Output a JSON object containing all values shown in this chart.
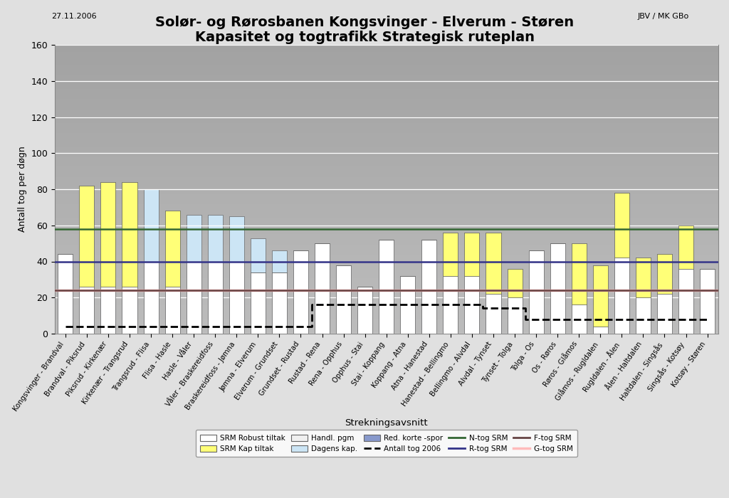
{
  "title_line1": "Solør- og Rørosbanen Kongsvinger - Elverum - Støren",
  "title_line2": "Kapasitet og togtrafikk Strategisk ruteplan",
  "date_text": "27.11.2006",
  "author_text": "JBV / MK GBo",
  "ylabel": "Antall tog per døgn",
  "xlabel": "Strekningsavsnitt",
  "ylim": [
    0,
    160
  ],
  "yticks": [
    0,
    20,
    40,
    60,
    80,
    100,
    120,
    140,
    160
  ],
  "categories": [
    "Kongsvinger - Brandval",
    "Brandval - Piksrud",
    "Piksrud - Kirkenær",
    "Kirkenær - Trangsrud",
    "Trangsrud - Flisa",
    "Flisa - Hasle",
    "Hasle - Våler",
    "Våler - Braskereidfoss",
    "Braskereidfoss - Jømna",
    "Jømna - Elverum",
    "Elverum - Grundset",
    "Grundset - Rustad",
    "Rustad - Rena",
    "Rena - Opphus",
    "Opphus - Stai",
    "Stai - Koppang",
    "Koppang - Atna",
    "Atna - Hanestad",
    "Hanestad - Bellingmo",
    "Bellingmo - Alvdal",
    "Alvdal - Tynset",
    "Tynset - Tolga",
    "Tolga - Os",
    "Os - Røros",
    "Røros - Glåmos",
    "Glåmos - Rugldalen",
    "Rugldalen - Ålen",
    "Ålen - Haltdalen",
    "Haltdalen - Singsås",
    "Singsås - Kotsøy",
    "Kotsøy - Støren"
  ],
  "srm_robust": [
    44,
    26,
    26,
    26,
    40,
    26,
    40,
    40,
    40,
    34,
    34,
    46,
    50,
    38,
    26,
    52,
    32,
    52,
    32,
    32,
    22,
    20,
    46,
    50,
    16,
    4,
    42,
    20,
    22,
    36,
    36
  ],
  "srm_kap": [
    0,
    56,
    58,
    58,
    0,
    42,
    0,
    0,
    0,
    0,
    0,
    0,
    0,
    0,
    0,
    0,
    0,
    0,
    24,
    24,
    34,
    16,
    0,
    0,
    34,
    34,
    36,
    22,
    22,
    24,
    0
  ],
  "dagens_kap": [
    44,
    82,
    84,
    84,
    80,
    68,
    66,
    66,
    65,
    53,
    46,
    46,
    50,
    38,
    26,
    52,
    32,
    52,
    56,
    56,
    56,
    36,
    46,
    50,
    50,
    38,
    78,
    42,
    44,
    60,
    36
  ],
  "red_korte_spor_bottom": [
    0,
    0,
    0,
    0,
    0,
    0,
    0,
    0,
    0,
    0,
    0,
    0,
    0,
    0,
    0,
    0,
    0,
    0,
    0,
    0,
    22,
    16,
    0,
    0,
    0,
    0,
    36,
    0,
    0,
    0,
    0
  ],
  "antall_tog_2006": [
    4,
    4,
    4,
    4,
    4,
    4,
    4,
    4,
    4,
    4,
    4,
    4,
    16,
    16,
    16,
    16,
    16,
    16,
    16,
    16,
    14,
    14,
    8,
    8,
    8,
    8,
    8,
    8,
    8,
    8,
    8
  ],
  "n_tog_srm_value": 58,
  "r_tog_srm_value": 40,
  "f_tog_srm_value": 24,
  "g_tog_srm_value": 24,
  "color_srm_robust": "#ffffff",
  "color_srm_kap": "#ffff77",
  "color_dagens_kap": "#cce5f5",
  "color_red_korte_spor": "#8899cc",
  "color_antall_tog": "#000000",
  "color_n_tog": "#336633",
  "color_r_tog": "#333388",
  "color_f_tog": "#664444",
  "color_g_tog": "#ffbbbb",
  "bar_edge_color": "#666666",
  "bg_color_top": "#e8e8e8",
  "bg_color_bottom": "#cccccc",
  "fig_bg": "#e0e0e0"
}
